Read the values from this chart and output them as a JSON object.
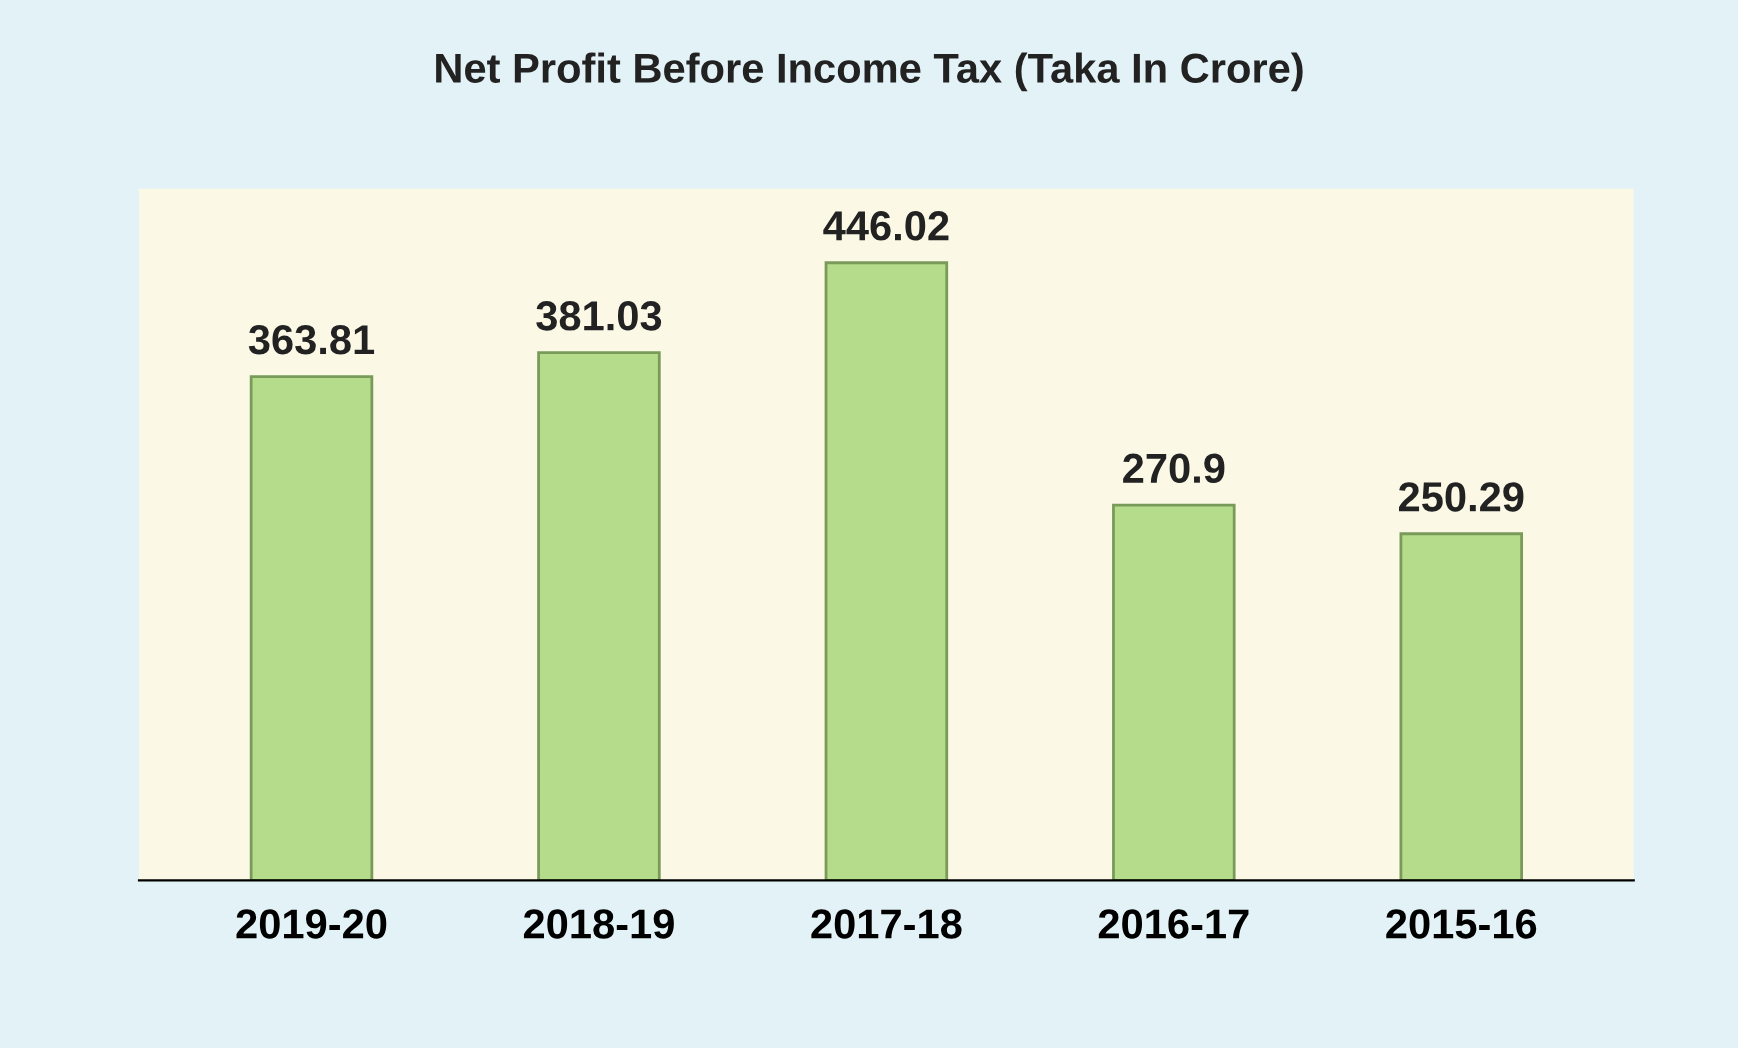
{
  "chart_data": {
    "type": "bar",
    "title": "Net Profit Before Income Tax (Taka In Crore)",
    "categories": [
      "2019-20",
      "2018-19",
      "2017-18",
      "2016-17",
      "2015-16"
    ],
    "values": [
      363.81,
      381.03,
      446.02,
      270.9,
      250.29
    ],
    "color": "#b5dc8a",
    "data_labels": true,
    "grid": false
  }
}
